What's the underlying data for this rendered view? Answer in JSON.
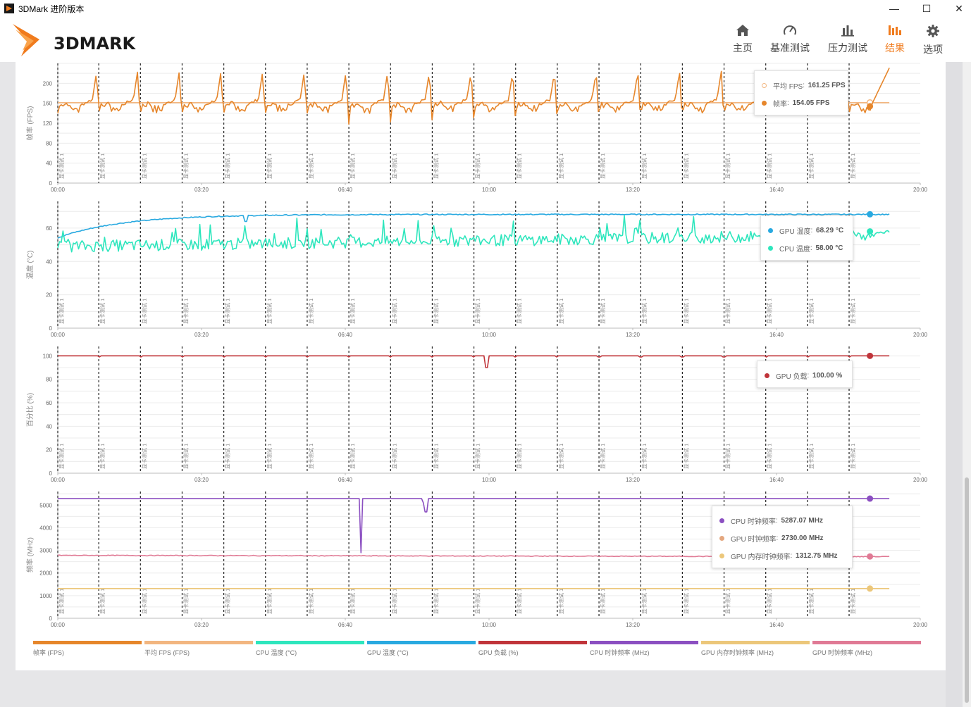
{
  "window": {
    "title": "3DMark 进阶版本",
    "controls": [
      "—",
      "☐",
      "✕"
    ]
  },
  "logo": {
    "text": "3DMARK"
  },
  "nav": {
    "items": [
      {
        "label": "主页",
        "icon": "home-icon"
      },
      {
        "label": "基准测试",
        "icon": "gauge-icon"
      },
      {
        "label": "压力测试",
        "icon": "bar-chart-icon"
      },
      {
        "label": "结果",
        "icon": "results-icon",
        "active": true
      },
      {
        "label": "选项",
        "icon": "gear-icon"
      }
    ],
    "accent": "#f07b1d"
  },
  "chart_data": [
    {
      "type": "line",
      "ylabel": "帧率 (FPS)",
      "ylim": [
        0,
        240
      ],
      "yticks": [
        0,
        40,
        80,
        120,
        160,
        200
      ],
      "xticks": [
        "00:00",
        "03:20",
        "06:40",
        "10:00",
        "13:20",
        "16:40",
        "20:00"
      ],
      "series": [
        {
          "name": "平均 FPS",
          "color": "#f2b680",
          "value": 161.25,
          "unit": "FPS",
          "pattern": "flat"
        },
        {
          "name": "帧率",
          "color": "#e6862b",
          "value": 154.05,
          "unit": "FPS",
          "pattern": "fps",
          "base": 160,
          "peak": 225,
          "low": 140
        }
      ],
      "tooltip": [
        {
          "label": "平均 FPS",
          "value": "161.25 FPS",
          "color": "#f2b680",
          "hollow": true
        },
        {
          "label": "帧率",
          "value": "154.05 FPS",
          "color": "#e6862b"
        }
      ]
    },
    {
      "type": "line",
      "ylabel": "温度 (°C)",
      "ylim": [
        0,
        76
      ],
      "yticks": [
        0,
        20,
        40,
        60
      ],
      "xticks": [
        "00:00",
        "03:20",
        "06:40",
        "10:00",
        "13:20",
        "16:40",
        "20:00"
      ],
      "series": [
        {
          "name": "GPU 温度",
          "color": "#29a9e0",
          "value": 68.29,
          "unit": "°C",
          "pattern": "gpu_temp"
        },
        {
          "name": "CPU 温度",
          "color": "#2ee6bd",
          "value": 58.0,
          "unit": "°C",
          "pattern": "cpu_temp"
        }
      ],
      "tooltip": [
        {
          "label": "GPU 温度",
          "value": "68.29 °C",
          "color": "#29a9e0"
        },
        {
          "label": "CPU 温度",
          "value": "58.00 °C",
          "color": "#2ee6bd"
        }
      ]
    },
    {
      "type": "line",
      "ylabel": "百分比 (%)",
      "ylim": [
        0,
        108
      ],
      "yticks": [
        0,
        20,
        40,
        60,
        80,
        100
      ],
      "xticks": [
        "00:00",
        "03:20",
        "06:40",
        "10:00",
        "13:20",
        "16:40",
        "20:00"
      ],
      "series": [
        {
          "name": "GPU 负载",
          "color": "#c0343a",
          "value": 100.0,
          "unit": "%",
          "pattern": "gpu_load"
        }
      ],
      "tooltip": [
        {
          "label": "GPU 负载",
          "value": "100.00 %",
          "color": "#c0343a"
        }
      ]
    },
    {
      "type": "line",
      "ylabel": "频率 (MHz)",
      "ylim": [
        0,
        5600
      ],
      "yticks": [
        0,
        1000,
        2000,
        3000,
        4000,
        5000
      ],
      "xticks": [
        "00:00",
        "03:20",
        "06:40",
        "10:00",
        "13:20",
        "16:40",
        "20:00"
      ],
      "series": [
        {
          "name": "CPU 时钟频率",
          "color": "#8b4fc1",
          "value": 5287.07,
          "unit": "MHz",
          "pattern": "cpu_clock"
        },
        {
          "name": "GPU 时钟频率",
          "color": "#e07a95",
          "value": 2730.0,
          "unit": "MHz",
          "pattern": "gpu_clock"
        },
        {
          "name": "GPU 内存时钟频率",
          "color": "#ecc77a",
          "value": 1312.75,
          "unit": "MHz",
          "pattern": "flat"
        }
      ],
      "tooltip": [
        {
          "label": "CPU 时钟频率",
          "value": "5287.07 MHz",
          "color": "#8b4fc1"
        },
        {
          "label": "GPU 时钟频率",
          "value": "2730.00 MHz",
          "color": "#e4a77f"
        },
        {
          "label": "GPU 内存时钟频率",
          "value": "1312.75 MHz",
          "color": "#ecc77a"
        }
      ]
    }
  ],
  "markers": {
    "label": "显卡测试 1",
    "times": [
      0,
      57,
      115,
      173,
      231,
      289,
      347,
      405,
      463,
      521,
      579,
      637,
      695,
      753,
      811,
      869,
      927,
      985,
      1043,
      1101
    ],
    "x_max": 1200,
    "data_end": 1157
  },
  "legend": [
    {
      "label": "帧率 (FPS)",
      "color": "#e6862b"
    },
    {
      "label": "平均 FPS (FPS)",
      "color": "#f2b680"
    },
    {
      "label": "CPU 温度 (°C)",
      "color": "#2ee6bd"
    },
    {
      "label": "GPU 温度 (°C)",
      "color": "#29a9e0"
    },
    {
      "label": "GPU 负载 (%)",
      "color": "#c0343a"
    },
    {
      "label": "CPU 时钟频率 (MHz)",
      "color": "#8b4fc1"
    },
    {
      "label": "GPU 内存时钟频率 (MHz)",
      "color": "#ecc77a"
    },
    {
      "label": "GPU 时钟频率 (MHz)",
      "color": "#e07a95"
    }
  ]
}
